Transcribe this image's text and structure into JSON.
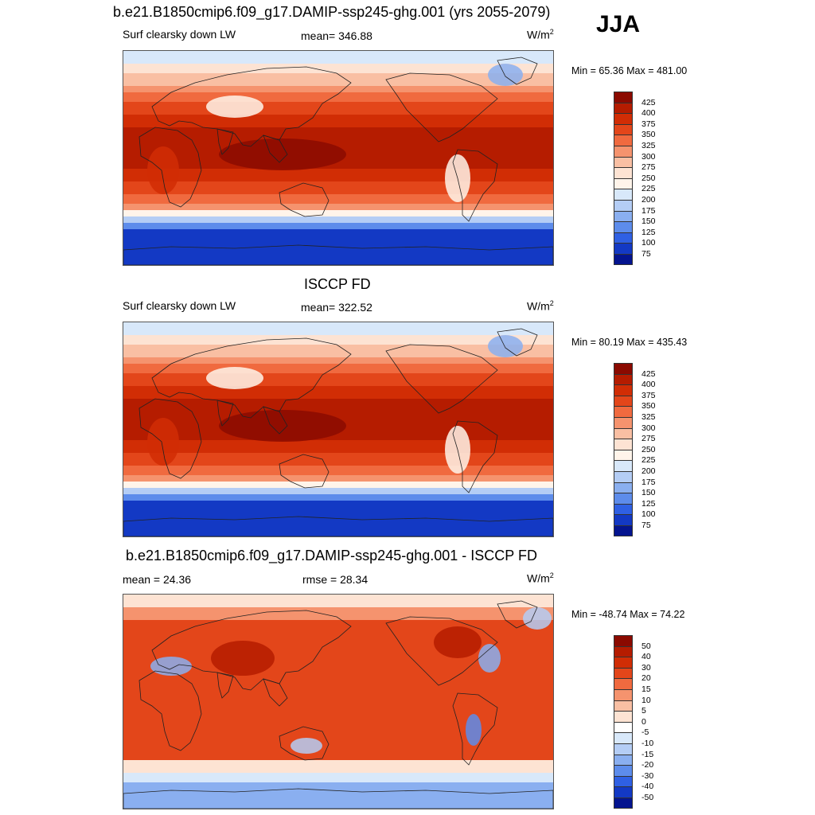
{
  "season": "JJA",
  "panels": [
    {
      "title": "b.e21.B1850cmip6.f09_g17.DAMIP-ssp245-ghg.001 (yrs 2055-2079)",
      "left_label": "Surf clearsky down LW",
      "center_label": "mean= 346.88",
      "units_base": "W/m",
      "units_exp": "2",
      "minmax": "Min =  65.36 Max = 481.00",
      "colorbar_labels": [
        "425",
        "400",
        "375",
        "350",
        "325",
        "300",
        "275",
        "250",
        "225",
        "200",
        "175",
        "150",
        "125",
        "100",
        "75"
      ],
      "colorbar_colors": [
        "#8b0a00",
        "#b51c00",
        "#d12d05",
        "#e3461a",
        "#f06a3f",
        "#f5936e",
        "#f9bfa3",
        "#fde3d3",
        "#fff4ea",
        "#d8e8fa",
        "#b4cdf5",
        "#8aaff0",
        "#5d8ceb",
        "#2f60e3",
        "#1339c4",
        "#04148f"
      ]
    },
    {
      "title": "ISCCP FD",
      "left_label": "Surf clearsky down LW",
      "center_label": "mean= 322.52",
      "units_base": "W/m",
      "units_exp": "2",
      "minmax": "Min =  80.19 Max = 435.43",
      "colorbar_labels": [
        "425",
        "400",
        "375",
        "350",
        "325",
        "300",
        "275",
        "250",
        "225",
        "200",
        "175",
        "150",
        "125",
        "100",
        "75"
      ],
      "colorbar_colors": [
        "#8b0a00",
        "#b51c00",
        "#d12d05",
        "#e3461a",
        "#f06a3f",
        "#f5936e",
        "#f9bfa3",
        "#fde3d3",
        "#fff4ea",
        "#d8e8fa",
        "#b4cdf5",
        "#8aaff0",
        "#5d8ceb",
        "#2f60e3",
        "#1339c4",
        "#04148f"
      ]
    },
    {
      "title": "b.e21.B1850cmip6.f09_g17.DAMIP-ssp245-ghg.001 - ISCCP FD",
      "left_label": "mean =  24.36",
      "center_label": "rmse =  28.34",
      "units_base": "W/m",
      "units_exp": "2",
      "minmax": "Min = -48.74 Max =  74.22",
      "colorbar_labels": [
        "50",
        "40",
        "30",
        "20",
        "15",
        "10",
        "5",
        "0",
        "-5",
        "-10",
        "-15",
        "-20",
        "-30",
        "-40",
        "-50"
      ],
      "colorbar_colors": [
        "#8b0a00",
        "#b51c00",
        "#d12d05",
        "#e3461a",
        "#f06a3f",
        "#f5936e",
        "#f9bfa3",
        "#fde3d3",
        "#ffffff",
        "#d8e8fa",
        "#b4cdf5",
        "#8aaff0",
        "#5d8ceb",
        "#2f60e3",
        "#1339c4",
        "#04148f"
      ]
    }
  ]
}
